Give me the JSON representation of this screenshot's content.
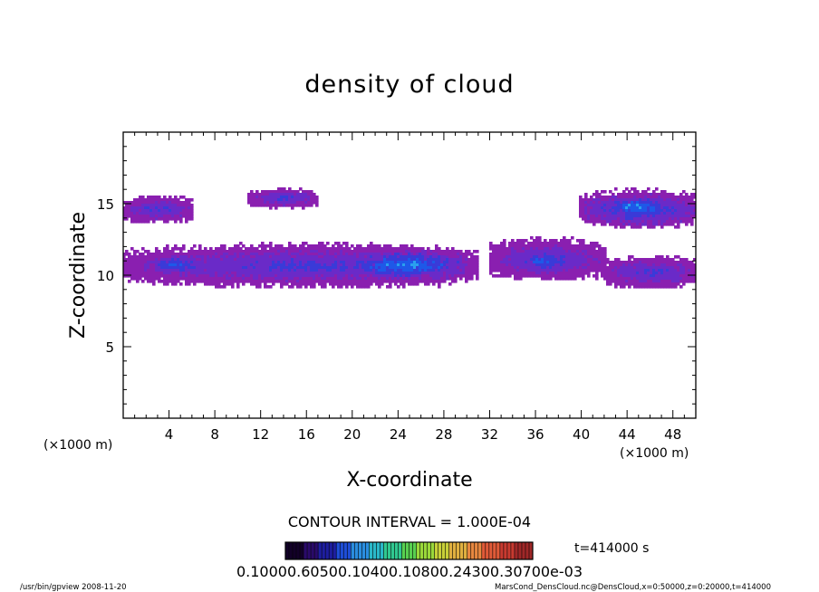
{
  "chart_data": {
    "type": "heatmap",
    "title": "density of cloud",
    "xlabel": "X-coordinate",
    "ylabel": "Z-coordinate",
    "x_unit": "(×1000 m)",
    "y_unit": "(×1000 m)",
    "xlim": [
      0,
      50
    ],
    "ylim": [
      0,
      20
    ],
    "x_ticks": [
      4,
      8,
      12,
      16,
      20,
      24,
      28,
      32,
      36,
      40,
      44,
      48
    ],
    "y_ticks": [
      5,
      10,
      15
    ],
    "contour_interval": "CONTOUR INTERVAL = 1.000E-04",
    "time_label": "t=414000 s",
    "colorbar_labels": "0.10000.60500.10400.10800.24300.30700e-03",
    "colorbar_colors": [
      "#120028",
      "#2a0a6a",
      "#1e1ea0",
      "#1e4ed8",
      "#2a8ee0",
      "#2ab8c8",
      "#30c890",
      "#58d050",
      "#9ad83a",
      "#c8d038",
      "#e0b040",
      "#e88840",
      "#e05a38",
      "#c83a30",
      "#a02828"
    ],
    "cloud_colors": {
      "edge": "#8a1fb0",
      "outer": "#6a2ac8",
      "mid": "#3a3ad8",
      "inner": "#1e58e8",
      "core": "#2aa0ee"
    },
    "footer_left": "/usr/bin/gpview   2008-11-20",
    "footer_right": "MarsCond_DensCloud.nc@DensCloud,x=0:50000,z=0:20000,t=414000",
    "regions": [
      {
        "x": [
          0,
          31
        ],
        "z": [
          9.3,
          12.2
        ],
        "level": 1
      },
      {
        "x": [
          32,
          42
        ],
        "z": [
          9.8,
          12.6
        ],
        "level": 1
      },
      {
        "x": [
          42,
          50
        ],
        "z": [
          9.2,
          11.4
        ],
        "level": 1
      },
      {
        "x": [
          0,
          6
        ],
        "z": [
          13.8,
          15.6
        ],
        "level": 1
      },
      {
        "x": [
          11,
          17
        ],
        "z": [
          14.8,
          16.1
        ],
        "level": 1
      },
      {
        "x": [
          40,
          50
        ],
        "z": [
          13.4,
          16.0
        ],
        "level": 2
      },
      {
        "x": [
          19,
          30
        ],
        "z": [
          9.6,
          12.0
        ],
        "level": 3
      },
      {
        "x": [
          2,
          7
        ],
        "z": [
          10.0,
          11.6
        ],
        "level": 2
      },
      {
        "x": [
          34,
          39
        ],
        "z": [
          10.0,
          12.0
        ],
        "level": 2
      },
      {
        "x": [
          42,
          47
        ],
        "z": [
          14.2,
          15.6
        ],
        "level": 3
      }
    ]
  }
}
